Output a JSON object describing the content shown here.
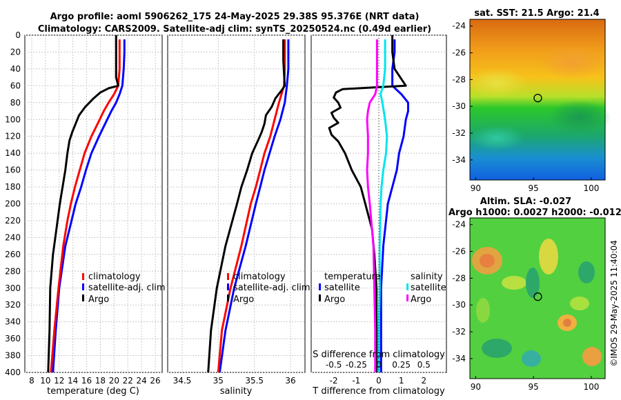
{
  "header": {
    "title_line1": "Argo profile: aoml 5906262_175 24-May-2025 29.38S 95.376E (NRT data)",
    "title_line2": "Climatology: CARS2009. Satellite-adj clim: synTS_20250524.nc (0.49d earlier)"
  },
  "sst_map": {
    "title": "sat. SST: 21.5 Argo: 21.4"
  },
  "sla_map": {
    "title1": "Altim. SLA: -0.027",
    "title2": "Argo h1000: 0.0027 h2000: -0.012"
  },
  "watermark": "©IMOS 29-May-2025 11:40:04",
  "legend_main": [
    "climatology",
    "satellite-adj. clim",
    "Argo"
  ],
  "legend_diff": {
    "temp_header": "temperature",
    "sal_header": "salinity",
    "temp_items": [
      "satellite",
      "Argo"
    ],
    "sal_items": [
      "satellite",
      "Argo"
    ]
  },
  "colors": {
    "climatology": "#ff0000",
    "satellite": "#0000ff",
    "argo": "#000000",
    "sal_sat": "#00e5ee",
    "sal_argo": "#ff00ff"
  },
  "chart_data": [
    {
      "type": "line",
      "title": "",
      "xlabel": "temperature (deg C)",
      "ylabel": "",
      "xlim": [
        7,
        27
      ],
      "ylim": [
        400,
        0
      ],
      "xticks": [
        8,
        10,
        12,
        14,
        16,
        18,
        20,
        22,
        24,
        26
      ],
      "yticks": [
        0,
        20,
        40,
        60,
        80,
        100,
        120,
        140,
        160,
        180,
        200,
        220,
        240,
        260,
        280,
        300,
        320,
        340,
        360,
        380,
        400
      ],
      "series": [
        {
          "name": "climatology",
          "depth": [
            5,
            20,
            40,
            60,
            70,
            80,
            90,
            100,
            120,
            140,
            160,
            180,
            200,
            220,
            250,
            300,
            350,
            400
          ],
          "values": [
            20.8,
            20.8,
            20.8,
            20.6,
            20.0,
            19.2,
            18.5,
            17.9,
            16.7,
            15.7,
            15.0,
            14.3,
            13.7,
            13.2,
            12.6,
            11.9,
            11.3,
            10.8
          ]
        },
        {
          "name": "satellite-adj. clim",
          "depth": [
            5,
            20,
            40,
            60,
            70,
            80,
            90,
            100,
            120,
            140,
            160,
            180,
            200,
            220,
            250,
            300,
            350,
            400
          ],
          "values": [
            21.5,
            21.5,
            21.4,
            21.2,
            20.8,
            20.3,
            19.6,
            19.0,
            17.8,
            16.7,
            15.9,
            15.2,
            14.4,
            13.8,
            12.9,
            12.0,
            11.5,
            11.1
          ]
        },
        {
          "name": "Argo",
          "depth": [
            0,
            10,
            30,
            50,
            60,
            63,
            68,
            75,
            85,
            95,
            105,
            115,
            125,
            140,
            160,
            180,
            200,
            230,
            260,
            300,
            350,
            400
          ],
          "values": [
            20.3,
            20.3,
            20.3,
            20.3,
            20.6,
            19.2,
            18.0,
            17.0,
            15.8,
            14.9,
            14.4,
            13.9,
            13.5,
            13.2,
            12.9,
            12.5,
            12.1,
            11.6,
            11.1,
            10.7,
            10.6,
            10.4
          ]
        }
      ]
    },
    {
      "type": "line",
      "title": "",
      "xlabel": "salinity",
      "ylabel": "",
      "xlim": [
        34.3,
        36.2
      ],
      "ylim": [
        400,
        0
      ],
      "xticks": [
        34.5,
        35,
        35.5,
        36
      ],
      "xticklabels": [
        "34.5",
        "35",
        "35.5",
        "36"
      ],
      "series": [
        {
          "name": "climatology",
          "depth": [
            5,
            40,
            60,
            80,
            100,
            120,
            140,
            160,
            180,
            200,
            250,
            300,
            350,
            400
          ],
          "values": [
            35.92,
            35.92,
            35.91,
            35.84,
            35.78,
            35.72,
            35.64,
            35.58,
            35.52,
            35.45,
            35.32,
            35.17,
            35.05,
            35.0
          ]
        },
        {
          "name": "satellite-adj. clim",
          "depth": [
            5,
            40,
            60,
            80,
            100,
            120,
            140,
            160,
            180,
            200,
            250,
            300,
            350,
            400
          ],
          "values": [
            35.97,
            35.97,
            35.95,
            35.92,
            35.86,
            35.78,
            35.71,
            35.64,
            35.58,
            35.52,
            35.38,
            35.22,
            35.1,
            35.02
          ]
        },
        {
          "name": "Argo",
          "depth": [
            5,
            30,
            60,
            65,
            75,
            85,
            95,
            105,
            115,
            125,
            140,
            160,
            180,
            200,
            250,
            300,
            350,
            400
          ],
          "values": [
            35.9,
            35.9,
            35.92,
            35.88,
            35.79,
            35.74,
            35.66,
            35.64,
            35.6,
            35.55,
            35.47,
            35.4,
            35.32,
            35.26,
            35.1,
            34.98,
            34.9,
            34.86
          ]
        }
      ]
    },
    {
      "type": "line",
      "title": "",
      "xlabel": "T difference from climatology",
      "xlabel_top": "S difference from climatology",
      "xlim": [
        -3,
        3
      ],
      "ylim": [
        400,
        0
      ],
      "xticks": [
        -2,
        -1,
        0,
        1,
        2
      ],
      "xticks_top": [
        -0.5,
        -0.25,
        0,
        0.25,
        0.5
      ],
      "xticklabels_top": [
        "-0.5",
        "-0.25",
        "0",
        "0.25",
        "0.5"
      ],
      "series": [
        {
          "name": "temperature satellite",
          "depth": [
            5,
            20,
            40,
            60,
            70,
            80,
            90,
            100,
            120,
            140,
            160,
            180,
            200,
            250,
            300,
            350,
            400
          ],
          "values": [
            0.7,
            0.7,
            0.6,
            0.6,
            1.0,
            1.3,
            1.3,
            1.2,
            1.1,
            0.9,
            0.8,
            0.6,
            0.4,
            0.2,
            0.1,
            0.1,
            0.1
          ]
        },
        {
          "name": "temperature Argo",
          "depth": [
            0,
            20,
            40,
            60,
            64,
            68,
            74,
            80,
            86,
            92,
            98,
            104,
            110,
            118,
            126,
            140,
            160,
            180,
            200,
            230,
            260,
            300,
            350,
            400
          ],
          "values": [
            0.6,
            0.6,
            0.7,
            1.2,
            -1.6,
            -1.9,
            -2.0,
            -1.8,
            -1.7,
            -2.1,
            -2.0,
            -1.8,
            -2.2,
            -2.1,
            -1.8,
            -1.5,
            -1.2,
            -0.8,
            -0.6,
            -0.3,
            -0.2,
            -0.1,
            -0.1,
            -0.1
          ]
        },
        {
          "name": "salinity satellite",
          "depth": [
            5,
            20,
            40,
            60,
            70,
            80,
            100,
            120,
            140,
            160,
            180,
            200,
            250,
            300,
            350,
            400
          ],
          "values": [
            0.07,
            0.07,
            0.07,
            0.05,
            0.02,
            0.04,
            0.07,
            0.09,
            0.08,
            0.05,
            0.03,
            0.02,
            0.01,
            0.01,
            0.0,
            0.0
          ]
        },
        {
          "name": "salinity Argo",
          "depth": [
            5,
            20,
            40,
            60,
            70,
            80,
            90,
            100,
            120,
            140,
            160,
            180,
            200,
            250,
            300,
            350,
            400
          ],
          "values": [
            -0.02,
            -0.02,
            -0.02,
            -0.02,
            -0.04,
            -0.1,
            -0.12,
            -0.13,
            -0.12,
            -0.12,
            -0.13,
            -0.12,
            -0.1,
            -0.06,
            -0.05,
            -0.04,
            -0.04
          ]
        }
      ]
    },
    {
      "type": "heatmap",
      "title": "sat. SST: 21.5 Argo: 21.4",
      "xlim": [
        89.5,
        101.2
      ],
      "ylim": [
        -35.5,
        -23.5
      ],
      "xticks": [
        90,
        95,
        100
      ],
      "yticks": [
        -24,
        -26,
        -28,
        -30,
        -32,
        -34
      ],
      "argo_position": {
        "lon": 95.376,
        "lat": -29.38
      }
    },
    {
      "type": "heatmap",
      "title": "Altim. SLA: -0.027",
      "xlim": [
        89.5,
        101.2
      ],
      "ylim": [
        -35.5,
        -23.5
      ],
      "xticks": [
        90,
        95,
        100
      ],
      "yticks": [
        -24,
        -26,
        -28,
        -30,
        -32,
        -34
      ],
      "argo_position": {
        "lon": 95.376,
        "lat": -29.38
      }
    }
  ]
}
